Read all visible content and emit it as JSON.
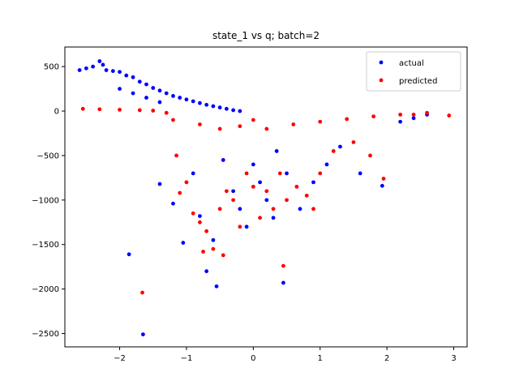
{
  "chart_data": {
    "type": "scatter",
    "title": "state_1 vs q; batch=2",
    "xlabel": "",
    "ylabel": "",
    "xlim": [
      -2.82,
      3.2
    ],
    "ylim": [
      -2650,
      720
    ],
    "xticks": [
      -2,
      -1,
      0,
      1,
      2,
      3
    ],
    "yticks": [
      500,
      0,
      -500,
      -1000,
      -1500,
      -2000,
      -2500
    ],
    "xtick_labels": [
      "−2",
      "−1",
      "0",
      "1",
      "2",
      "3"
    ],
    "ytick_labels": [
      "500",
      "0",
      "−500",
      "−1000",
      "−1500",
      "−2000",
      "−2500"
    ],
    "grid": false,
    "legend_position": "top-right",
    "series": [
      {
        "name": "actual",
        "color": "#0000ff",
        "values": [
          [
            -2.6,
            460
          ],
          [
            -2.5,
            480
          ],
          [
            -2.4,
            500
          ],
          [
            -2.3,
            560
          ],
          [
            -2.25,
            520
          ],
          [
            -2.2,
            460
          ],
          [
            -2.1,
            450
          ],
          [
            -2.0,
            440
          ],
          [
            -1.9,
            400
          ],
          [
            -1.8,
            380
          ],
          [
            -1.7,
            330
          ],
          [
            -1.6,
            300
          ],
          [
            -1.5,
            260
          ],
          [
            -1.4,
            230
          ],
          [
            -1.3,
            200
          ],
          [
            -1.2,
            170
          ],
          [
            -1.1,
            150
          ],
          [
            -1.0,
            130
          ],
          [
            -0.9,
            110
          ],
          [
            -0.8,
            90
          ],
          [
            -0.7,
            70
          ],
          [
            -0.6,
            55
          ],
          [
            -0.5,
            40
          ],
          [
            -0.4,
            25
          ],
          [
            -0.3,
            10
          ],
          [
            -0.2,
            0
          ],
          [
            -2.0,
            250
          ],
          [
            -1.8,
            200
          ],
          [
            -1.6,
            150
          ],
          [
            -1.4,
            100
          ],
          [
            -1.86,
            -1610
          ],
          [
            -1.65,
            -2510
          ],
          [
            -1.4,
            -820
          ],
          [
            -1.2,
            -1040
          ],
          [
            -1.05,
            -1480
          ],
          [
            -0.8,
            -1180
          ],
          [
            -0.7,
            -1800
          ],
          [
            -0.55,
            -1970
          ],
          [
            -0.6,
            -1450
          ],
          [
            -0.9,
            -700
          ],
          [
            -0.3,
            -900
          ],
          [
            -0.2,
            -1100
          ],
          [
            -0.1,
            -1300
          ],
          [
            0.0,
            -600
          ],
          [
            0.1,
            -800
          ],
          [
            0.2,
            -1000
          ],
          [
            0.3,
            -1200
          ],
          [
            0.45,
            -1930
          ],
          [
            0.5,
            -700
          ],
          [
            0.7,
            -1100
          ],
          [
            0.9,
            -800
          ],
          [
            1.1,
            -600
          ],
          [
            1.3,
            -400
          ],
          [
            1.6,
            -700
          ],
          [
            1.93,
            -840
          ],
          [
            2.2,
            -120
          ],
          [
            2.4,
            -80
          ],
          [
            2.6,
            -40
          ],
          [
            -0.45,
            -550
          ],
          [
            0.35,
            -450
          ]
        ]
      },
      {
        "name": "predicted",
        "color": "#ff0000",
        "values": [
          [
            -2.55,
            25
          ],
          [
            -2.3,
            20
          ],
          [
            -2.0,
            15
          ],
          [
            -1.7,
            10
          ],
          [
            -1.5,
            5
          ],
          [
            -1.3,
            -20
          ],
          [
            -1.2,
            -100
          ],
          [
            -1.15,
            -500
          ],
          [
            -1.0,
            -800
          ],
          [
            -0.9,
            -1150
          ],
          [
            -0.8,
            -1250
          ],
          [
            -0.7,
            -1350
          ],
          [
            -0.6,
            -1550
          ],
          [
            -0.5,
            -1100
          ],
          [
            -0.4,
            -900
          ],
          [
            -0.3,
            -1000
          ],
          [
            -0.2,
            -1300
          ],
          [
            -0.1,
            -700
          ],
          [
            0.0,
            -850
          ],
          [
            0.1,
            -1200
          ],
          [
            0.2,
            -900
          ],
          [
            0.3,
            -1100
          ],
          [
            0.4,
            -700
          ],
          [
            0.45,
            -1740
          ],
          [
            0.5,
            -1000
          ],
          [
            0.65,
            -850
          ],
          [
            0.8,
            -950
          ],
          [
            1.0,
            -700
          ],
          [
            1.2,
            -450
          ],
          [
            1.5,
            -350
          ],
          [
            1.75,
            -500
          ],
          [
            1.95,
            -760
          ],
          [
            2.2,
            -40
          ],
          [
            2.6,
            -20
          ],
          [
            2.93,
            -50
          ],
          [
            -1.66,
            -2040
          ],
          [
            -0.45,
            -1620
          ],
          [
            -0.75,
            -1580
          ],
          [
            -1.1,
            -920
          ],
          [
            0.9,
            -1100
          ],
          [
            -0.8,
            -150
          ],
          [
            -0.5,
            -200
          ],
          [
            -0.2,
            -170
          ],
          [
            0.2,
            -200
          ],
          [
            0.6,
            -150
          ],
          [
            1.0,
            -120
          ],
          [
            1.4,
            -90
          ],
          [
            1.8,
            -60
          ],
          [
            2.4,
            -40
          ],
          [
            0.0,
            -100
          ]
        ]
      }
    ]
  }
}
